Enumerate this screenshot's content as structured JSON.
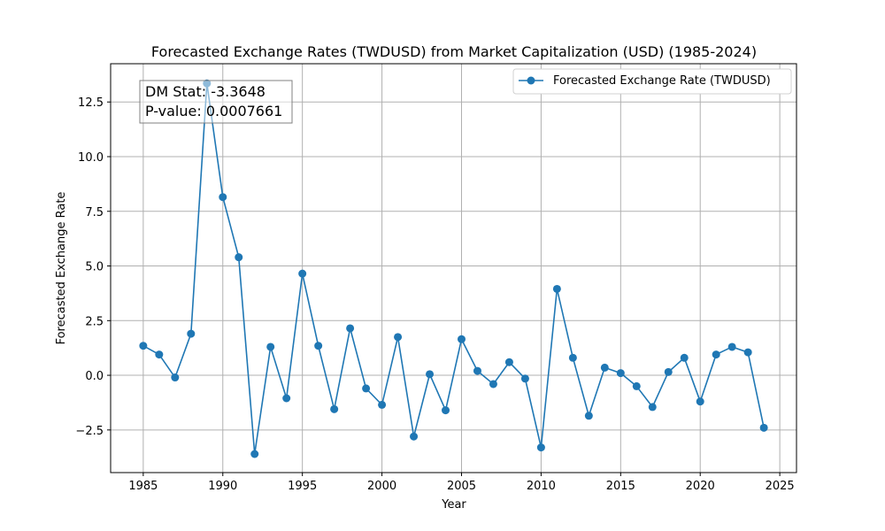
{
  "chart_data": {
    "type": "line",
    "title": "Forecasted Exchange Rates (TWDUSD) from Market Capitalization (USD) (1985-2024)",
    "xlabel": "Year",
    "ylabel": "Forecasted Exchange Rate",
    "xlim": [
      1982.95,
      2026.05
    ],
    "ylim": [
      -4.45,
      14.25
    ],
    "x_ticks": [
      1985,
      1990,
      1995,
      2000,
      2005,
      2010,
      2015,
      2020,
      2025
    ],
    "y_ticks": [
      -2.5,
      0.0,
      2.5,
      5.0,
      7.5,
      10.0,
      12.5
    ],
    "y_tick_labels": [
      "−2.5",
      "0.0",
      "2.5",
      "5.0",
      "7.5",
      "10.0",
      "12.5"
    ],
    "grid": true,
    "legend_position": "upper right",
    "series": [
      {
        "name": "Forecasted Exchange Rate (TWDUSD)",
        "color": "#1f77b4",
        "marker": "circle",
        "x": [
          1985,
          1986,
          1987,
          1988,
          1989,
          1990,
          1991,
          1992,
          1993,
          1994,
          1995,
          1996,
          1997,
          1998,
          1999,
          2000,
          2001,
          2002,
          2003,
          2004,
          2005,
          2006,
          2007,
          2008,
          2009,
          2010,
          2011,
          2012,
          2013,
          2014,
          2015,
          2016,
          2017,
          2018,
          2019,
          2020,
          2021,
          2022,
          2023,
          2024
        ],
        "y": [
          1.35,
          0.95,
          -0.1,
          1.9,
          13.35,
          8.15,
          5.4,
          -3.6,
          1.3,
          -1.05,
          4.65,
          1.35,
          -1.55,
          2.15,
          -0.6,
          -1.35,
          1.75,
          -2.8,
          0.05,
          -1.6,
          1.65,
          0.2,
          -0.4,
          0.6,
          -0.15,
          -3.3,
          3.95,
          0.8,
          -1.85,
          0.35,
          0.1,
          -0.5,
          -1.45,
          0.15,
          0.8,
          -1.2,
          0.95,
          1.3,
          1.05,
          -2.4
        ]
      }
    ],
    "annotation": {
      "lines": [
        "DM Stat: -3.3648",
        "P-value: 0.0007661"
      ],
      "position": "top-left"
    }
  }
}
